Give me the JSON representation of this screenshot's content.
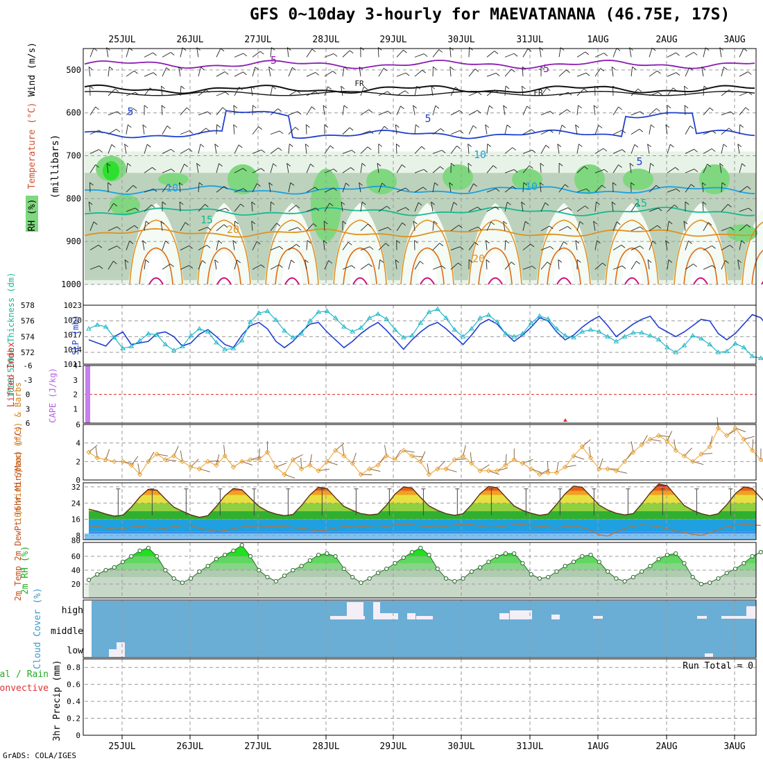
{
  "page": {
    "title": "GFS 0~10day 3-hourly for MAEVATANANA (46.75E, 17S)",
    "credit": "GrADS: COLA/IGES"
  },
  "colors": {
    "grid": "#9a9a9a",
    "purple": "#8a1ab0",
    "blue_dark": "#1f3fd0",
    "blue_light": "#1ba0e0",
    "teal": "#16b890",
    "orange": "#e09020",
    "magenta": "#d0107a",
    "cyan": "#20b8c8",
    "rh_green": "#7fd87f",
    "cloud_blue": "#6aaed6",
    "wind_orange": "#e8a030",
    "barb_brown": "#7a5530"
  },
  "chart_data": [
    {
      "panel": "upper-air",
      "type": "heatmap",
      "x_dates": [
        "25JUL",
        "26JUL",
        "27JUL",
        "28JUL",
        "29JUL",
        "30JUL",
        "31JUL",
        "1AUG",
        "2AUG",
        "3AUG"
      ],
      "ylabel_parts": [
        "RH (%)",
        "Temperature (°C)",
        "Wind (m/s)",
        "(millibars)"
      ],
      "yticks": [
        "500",
        "600",
        "700",
        "800",
        "900",
        "1000"
      ],
      "ylim": [
        450,
        1000
      ],
      "isotherm_labels": [
        "-5",
        "-5",
        "FR",
        "FR",
        "5",
        "5",
        "5",
        "10",
        "10",
        "10",
        "15",
        "15",
        "20",
        "20"
      ],
      "isotherms": [
        {
          "label": "-5",
          "pressure_mb": 487
        },
        {
          "label": "FR",
          "pressure_mb": 545
        },
        {
          "label": "5",
          "pressure_mb": 650
        },
        {
          "label": "10",
          "pressure_mb": 780
        },
        {
          "label": "15",
          "pressure_mb": 830
        },
        {
          "label": "20",
          "pressure_mb": 880
        }
      ]
    },
    {
      "panel": "thickness-slp",
      "type": "line",
      "ylabel_left": "1000-500mb Thickness (dm)",
      "ylabel_right": "SLP (mb)",
      "left_ticks": [
        "578",
        "576",
        "574",
        "572"
      ],
      "right_ticks": [
        "1023",
        "1020",
        "1017",
        "1014",
        "1011"
      ],
      "ylim_left": [
        570.5,
        578
      ],
      "ylim_right": [
        1011,
        1023
      ],
      "series": [
        {
          "name": "1000-500mb Thickness (dm)",
          "values": [
            573.6,
            573.2,
            572.8,
            574.0,
            574.6,
            573.0,
            573.2,
            573.4,
            574.4,
            574.6,
            574.0,
            572.8,
            573.2,
            574.3,
            574.9,
            574.0,
            573.0,
            572.6,
            574.2,
            575.4,
            575.8,
            575.0,
            573.4,
            572.6,
            573.4,
            574.6,
            575.6,
            575.8,
            574.6,
            573.6,
            572.6,
            573.4,
            574.4,
            575.2,
            575.8,
            574.8,
            573.6,
            572.4,
            573.6,
            574.6,
            575.4,
            575.8,
            575.0,
            574.0,
            573.0,
            574.2,
            575.6,
            576.2,
            575.6,
            574.4,
            573.4,
            574.2,
            575.2,
            576.4,
            576.0,
            574.6,
            573.6,
            574.2,
            575.2,
            576.0,
            576.6,
            575.4,
            574.0,
            574.8,
            575.6,
            576.2,
            576.6,
            575.2,
            574.6,
            574.0,
            574.6,
            575.4,
            576.2,
            576.0,
            574.4,
            573.6,
            574.4,
            575.6,
            576.8,
            576.4,
            575.0,
            575.8
          ]
        },
        {
          "name": "SLP (mb)",
          "values": [
            1018.2,
            1019.0,
            1018.6,
            1016.4,
            1014.2,
            1014.6,
            1015.8,
            1017.2,
            1017.0,
            1015.0,
            1013.8,
            1014.6,
            1016.8,
            1018.2,
            1017.6,
            1015.4,
            1014.0,
            1014.2,
            1015.8,
            1019.6,
            1021.4,
            1021.8,
            1020.0,
            1017.8,
            1016.4,
            1017.2,
            1019.8,
            1021.6,
            1021.8,
            1020.4,
            1018.6,
            1017.6,
            1018.4,
            1020.4,
            1021.2,
            1020.2,
            1018.0,
            1016.4,
            1016.8,
            1019.4,
            1021.6,
            1022.2,
            1020.4,
            1018.0,
            1016.6,
            1018.2,
            1020.4,
            1021.0,
            1019.6,
            1017.2,
            1016.6,
            1017.2,
            1019.4,
            1020.8,
            1020.2,
            1018.2,
            1016.8,
            1016.4,
            1017.6,
            1018.0,
            1017.6,
            1016.6,
            1015.6,
            1016.6,
            1017.4,
            1017.4,
            1016.8,
            1016.0,
            1014.4,
            1013.4,
            1014.8,
            1016.8,
            1016.2,
            1015.0,
            1013.4,
            1013.6,
            1015.2,
            1014.4,
            1012.6,
            1012.2,
            1012.4,
            1014.4
          ]
        }
      ]
    },
    {
      "panel": "cape-li",
      "type": "bar",
      "ylabel_left": "Lifted Index",
      "ylabel_right": "CAPE (J/kg)",
      "left_ticks": [
        "-6",
        "-3",
        "0",
        "3",
        "6"
      ],
      "right_ticks": [
        "4",
        "3",
        "2",
        "1"
      ],
      "ylim_left": [
        -6,
        6
      ],
      "ylim_right": [
        0,
        4
      ],
      "series": [
        {
          "name": "CAPE (J/kg)",
          "values": [
            4.2
          ]
        },
        {
          "name": "Lifted Index",
          "values": [
            0
          ]
        }
      ]
    },
    {
      "panel": "wind10m",
      "type": "line",
      "ylabel": "10m Wind Speed (m/s) & Barbs",
      "yticks": [
        "6",
        "4",
        "2",
        "0"
      ],
      "ylim": [
        0,
        6
      ],
      "series": [
        {
          "name": "10m Wind Speed",
          "values": [
            3.0,
            2.4,
            2.2,
            2.0,
            2.0,
            1.6,
            0.6,
            2.0,
            2.8,
            2.2,
            2.6,
            2.0,
            1.4,
            1.2,
            2.0,
            1.6,
            2.6,
            1.4,
            2.0,
            2.2,
            2.2,
            3.0,
            1.4,
            0.6,
            2.2,
            1.2,
            1.6,
            1.0,
            2.0,
            3.2,
            2.6,
            1.8,
            0.6,
            1.2,
            1.6,
            2.6,
            2.2,
            3.2,
            2.6,
            2.0,
            0.6,
            1.2,
            1.2,
            2.2,
            2.6,
            1.8,
            1.0,
            1.0,
            1.0,
            1.6,
            2.2,
            1.8,
            1.2,
            0.6,
            0.8,
            0.8,
            1.4,
            2.6,
            3.6,
            2.4,
            1.2,
            1.2,
            1.0,
            2.0,
            3.0,
            3.8,
            4.4,
            4.8,
            4.2,
            3.2,
            2.6,
            2.0,
            2.8,
            3.6,
            5.6,
            4.8,
            5.6,
            4.4,
            3.2,
            2.2,
            1.4,
            2.8,
            3.8
          ]
        }
      ]
    },
    {
      "panel": "temp2m",
      "type": "area",
      "ylabel": "2m Temp 2m DewPt (6hr Min/Max) (°C)",
      "yticks": [
        "32",
        "24",
        "16",
        "8"
      ],
      "ylim": [
        6,
        34
      ],
      "series": [
        {
          "name": "2m Temp",
          "values": [
            21.0,
            20.0,
            18.6,
            17.6,
            18.0,
            22.0,
            27.0,
            30.8,
            30.4,
            26.0,
            22.0,
            20.0,
            18.2,
            17.0,
            17.8,
            22.4,
            27.6,
            31.2,
            30.6,
            26.4,
            22.4,
            20.0,
            18.6,
            17.8,
            18.4,
            22.8,
            28.0,
            31.8,
            31.2,
            26.6,
            22.4,
            20.4,
            18.8,
            18.2,
            18.6,
            23.0,
            28.4,
            32.0,
            31.4,
            26.8,
            22.6,
            20.4,
            18.8,
            18.0,
            18.8,
            23.2,
            28.6,
            32.2,
            31.6,
            27.0,
            22.6,
            20.4,
            19.0,
            18.0,
            18.6,
            23.4,
            28.6,
            32.4,
            31.8,
            27.4,
            23.0,
            20.6,
            19.0,
            18.2,
            18.8,
            23.6,
            29.0,
            33.4,
            32.6,
            27.6,
            22.8,
            20.4,
            18.8,
            17.8,
            18.8,
            23.2,
            28.6,
            32.0,
            31.2,
            26.6,
            22.2,
            20.2,
            19.6,
            22.2
          ]
        },
        {
          "name": "2m DewPt",
          "values": [
            12.8,
            12.6,
            11.8,
            11.2,
            11.4,
            12.2,
            12.6,
            12.0,
            11.8,
            11.6,
            12.4,
            13.0,
            13.0,
            11.6,
            10.8,
            10.0,
            10.4,
            11.4,
            12.2,
            12.6,
            12.8,
            12.6,
            12.4,
            12.4,
            12.0,
            11.6,
            11.0,
            10.2,
            10.8,
            11.8,
            12.4,
            12.8,
            12.6,
            12.2,
            12.0,
            12.4,
            13.2,
            13.6,
            13.2,
            12.8,
            12.4,
            12.2,
            12.6,
            13.2,
            13.6,
            13.4,
            12.6,
            12.0,
            12.2,
            12.8,
            13.2,
            13.4,
            13.0,
            12.6,
            12.2,
            11.8,
            12.4,
            12.8,
            12.0,
            10.6,
            8.4,
            7.8,
            9.8,
            11.6,
            12.6,
            13.2,
            13.0,
            12.4,
            11.4,
            10.2,
            9.6,
            8.6,
            8.2,
            9.2,
            11.0,
            12.4,
            13.0,
            13.4,
            13.2,
            13.0
          ]
        }
      ]
    },
    {
      "panel": "rh2m",
      "type": "area",
      "ylabel": "2m RH (%)",
      "yticks": [
        "80",
        "60",
        "40",
        "20"
      ],
      "ylim": [
        0,
        80
      ],
      "series": [
        {
          "name": "2m RH",
          "values": [
            26,
            34,
            40,
            44,
            52,
            60,
            68,
            72,
            60,
            40,
            28,
            22,
            28,
            38,
            46,
            56,
            62,
            68,
            76,
            60,
            40,
            30,
            24,
            32,
            40,
            46,
            54,
            62,
            64,
            60,
            42,
            30,
            22,
            28,
            36,
            42,
            50,
            58,
            66,
            72,
            62,
            42,
            28,
            24,
            28,
            38,
            44,
            52,
            60,
            64,
            64,
            50,
            34,
            28,
            30,
            38,
            46,
            52,
            60,
            62,
            52,
            38,
            28,
            24,
            30,
            38,
            46,
            56,
            62,
            64,
            50,
            30,
            20,
            22,
            28,
            36,
            42,
            50,
            60,
            66,
            72,
            44
          ]
        }
      ]
    },
    {
      "panel": "cloud",
      "type": "bar",
      "ylabel": "Cloud Cover (%)",
      "levels": [
        "high",
        "middle",
        "low"
      ]
    },
    {
      "panel": "precip",
      "type": "bar",
      "ylabel_lines": [
        "Total / Rain",
        "Convective",
        "3hr Precip (mm)"
      ],
      "yticks": [
        "0.8",
        "0.6",
        "0.4",
        "0.2",
        "0"
      ],
      "ylim": [
        0,
        0.9
      ],
      "annotation": "Run Total = 0",
      "values": []
    }
  ],
  "xaxis_bottom": [
    "25JUL",
    "26JUL",
    "27JUL",
    "28JUL",
    "29JUL",
    "30JUL",
    "31JUL",
    "1AUG",
    "2AUG",
    "3AUG"
  ]
}
